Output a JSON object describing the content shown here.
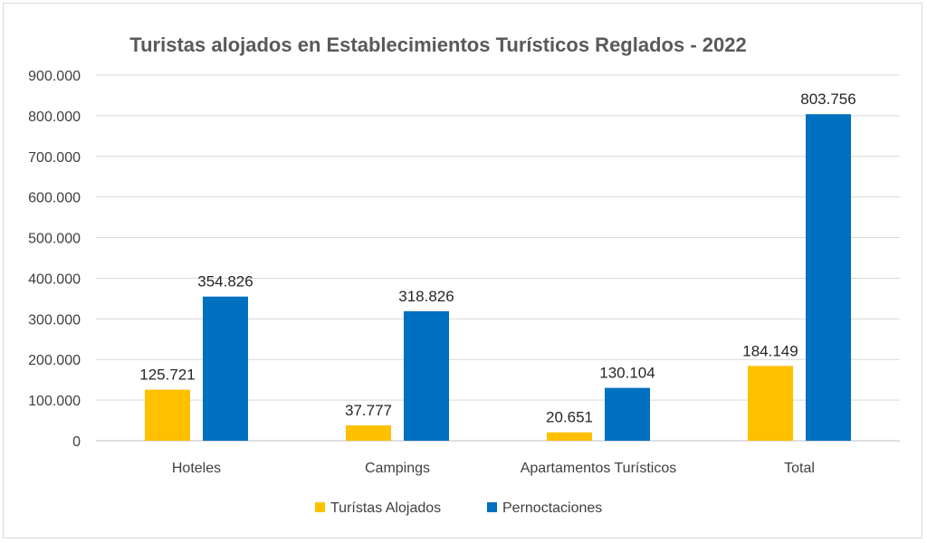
{
  "chart_data": {
    "type": "bar",
    "title": "Turistas alojados en Establecimientos Turísticos Reglados - 2022",
    "categories": [
      "Hoteles",
      "Campings",
      "Apartamentos Turísticos",
      "Total"
    ],
    "series": [
      {
        "name": "Turístas Alojados",
        "color": "#FFC000",
        "values": [
          125721,
          37777,
          20651,
          184149
        ],
        "labels": [
          "125.721",
          "37.777",
          "20.651",
          "184.149"
        ]
      },
      {
        "name": "Pernoctaciones",
        "color": "#0070C0",
        "values": [
          354826,
          318826,
          130104,
          803756
        ],
        "labels": [
          "354.826",
          "318.826",
          "130.104",
          "803.756"
        ]
      }
    ],
    "ylim": [
      0,
      900000
    ],
    "yticks": [
      0,
      100000,
      200000,
      300000,
      400000,
      500000,
      600000,
      700000,
      800000,
      900000
    ],
    "ytick_labels": [
      "0",
      "100.000",
      "200.000",
      "300.000",
      "400.000",
      "500.000",
      "600.000",
      "700.000",
      "800.000",
      "900.000"
    ],
    "xlabel": "",
    "ylabel": "",
    "grid": true,
    "legend_position": "bottom"
  }
}
